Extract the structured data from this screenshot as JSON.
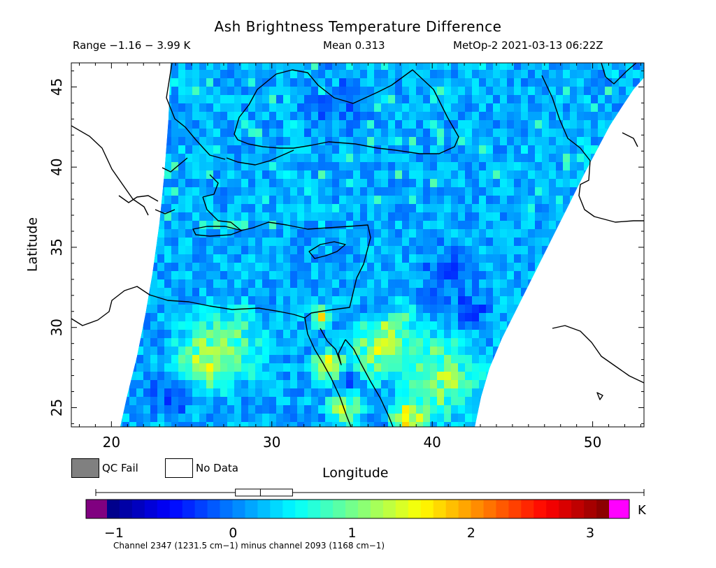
{
  "header": {
    "title": "Ash Brightness Temperature Difference",
    "range": "Range −1.16 − 3.99 K",
    "mean": "Mean 0.313",
    "satellite_time": "MetOp-2 2021-03-13 06:22Z"
  },
  "axes": {
    "x_label": "Longitude",
    "y_label": "Latitude",
    "x_ticks": [
      "20",
      "30",
      "40",
      "50"
    ],
    "y_ticks": [
      "45",
      "40",
      "35",
      "30",
      "25"
    ],
    "x_range": [
      17.5,
      53.2
    ],
    "y_range": [
      23.8,
      46.5
    ]
  },
  "legend": {
    "qc_fail": "QC Fail",
    "no_data": "No Data",
    "qc_fail_color": "#808080",
    "no_data_color": "#ffffff"
  },
  "colorbar": {
    "ticks": [
      "−1",
      "0",
      "1",
      "2",
      "3"
    ],
    "unit": "K",
    "range": [
      -1.2,
      3.4
    ],
    "under_color": "#800080",
    "over_color": "#ff00ff",
    "box_whisker": {
      "min": -1.16,
      "q1": 0.02,
      "median": 0.23,
      "q3": 0.5,
      "max": 3.99
    }
  },
  "footer": {
    "channel_note": "Channel 2347 (1231.5 cm−1) minus channel 2093 (1168 cm−1)"
  },
  "colors": {
    "coastline": "#000000",
    "background": "#ffffff",
    "field_base": "#2f8cf0"
  }
}
